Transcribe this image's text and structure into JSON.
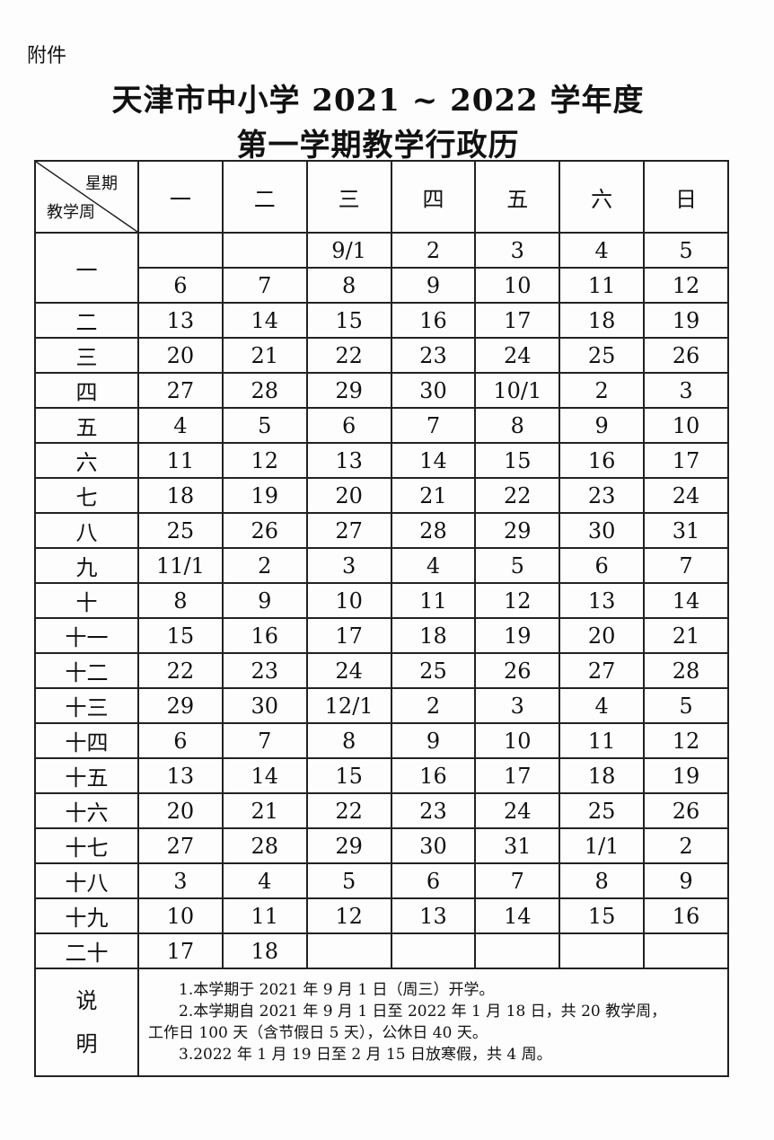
{
  "attachment_label": "附件",
  "title_line1": "天津市中小学 2021 ~ 2022 学年度",
  "title_line2": "第一学期教学行政历",
  "header": {
    "corner_top": "星期",
    "corner_bottom": "教学周",
    "days": [
      "一",
      "二",
      "三",
      "四",
      "五",
      "六",
      "日"
    ]
  },
  "weeks": [
    {
      "label": "一",
      "rows": [
        [
          "",
          "",
          "9/1",
          "2",
          "3",
          "4",
          "5"
        ],
        [
          "6",
          "7",
          "8",
          "9",
          "10",
          "11",
          "12"
        ]
      ]
    },
    {
      "label": "二",
      "rows": [
        [
          "13",
          "14",
          "15",
          "16",
          "17",
          "18",
          "19"
        ]
      ]
    },
    {
      "label": "三",
      "rows": [
        [
          "20",
          "21",
          "22",
          "23",
          "24",
          "25",
          "26"
        ]
      ]
    },
    {
      "label": "四",
      "rows": [
        [
          "27",
          "28",
          "29",
          "30",
          "10/1",
          "2",
          "3"
        ]
      ]
    },
    {
      "label": "五",
      "rows": [
        [
          "4",
          "5",
          "6",
          "7",
          "8",
          "9",
          "10"
        ]
      ]
    },
    {
      "label": "六",
      "rows": [
        [
          "11",
          "12",
          "13",
          "14",
          "15",
          "16",
          "17"
        ]
      ]
    },
    {
      "label": "七",
      "rows": [
        [
          "18",
          "19",
          "20",
          "21",
          "22",
          "23",
          "24"
        ]
      ]
    },
    {
      "label": "八",
      "rows": [
        [
          "25",
          "26",
          "27",
          "28",
          "29",
          "30",
          "31"
        ]
      ]
    },
    {
      "label": "九",
      "rows": [
        [
          "11/1",
          "2",
          "3",
          "4",
          "5",
          "6",
          "7"
        ]
      ]
    },
    {
      "label": "十",
      "rows": [
        [
          "8",
          "9",
          "10",
          "11",
          "12",
          "13",
          "14"
        ]
      ]
    },
    {
      "label": "十一",
      "rows": [
        [
          "15",
          "16",
          "17",
          "18",
          "19",
          "20",
          "21"
        ]
      ]
    },
    {
      "label": "十二",
      "rows": [
        [
          "22",
          "23",
          "24",
          "25",
          "26",
          "27",
          "28"
        ]
      ]
    },
    {
      "label": "十三",
      "rows": [
        [
          "29",
          "30",
          "12/1",
          "2",
          "3",
          "4",
          "5"
        ]
      ]
    },
    {
      "label": "十四",
      "rows": [
        [
          "6",
          "7",
          "8",
          "9",
          "10",
          "11",
          "12"
        ]
      ]
    },
    {
      "label": "十五",
      "rows": [
        [
          "13",
          "14",
          "15",
          "16",
          "17",
          "18",
          "19"
        ]
      ]
    },
    {
      "label": "十六",
      "rows": [
        [
          "20",
          "21",
          "22",
          "23",
          "24",
          "25",
          "26"
        ]
      ]
    },
    {
      "label": "十七",
      "rows": [
        [
          "27",
          "28",
          "29",
          "30",
          "31",
          "1/1",
          "2"
        ]
      ]
    },
    {
      "label": "十八",
      "rows": [
        [
          "3",
          "4",
          "5",
          "6",
          "7",
          "8",
          "9"
        ]
      ]
    },
    {
      "label": "十九",
      "rows": [
        [
          "10",
          "11",
          "12",
          "13",
          "14",
          "15",
          "16"
        ]
      ]
    },
    {
      "label": "二十",
      "rows": [
        [
          "17",
          "18",
          "",
          "",
          "",
          "",
          ""
        ]
      ]
    }
  ],
  "notes": {
    "label_1": "说",
    "label_2": "明",
    "items": [
      "1.本学期于 2021 年 9 月 1 日（周三）开学。",
      "2.本学期自 2021 年 9 月 1 日至 2022 年 1 月 18 日，共 20 教学周，",
      "工作日 100 天（含节假日 5 天），公休日 40 天。",
      "3.2022 年 1 月 19 日至 2 月 15 日放寒假，共 4 周。"
    ]
  }
}
